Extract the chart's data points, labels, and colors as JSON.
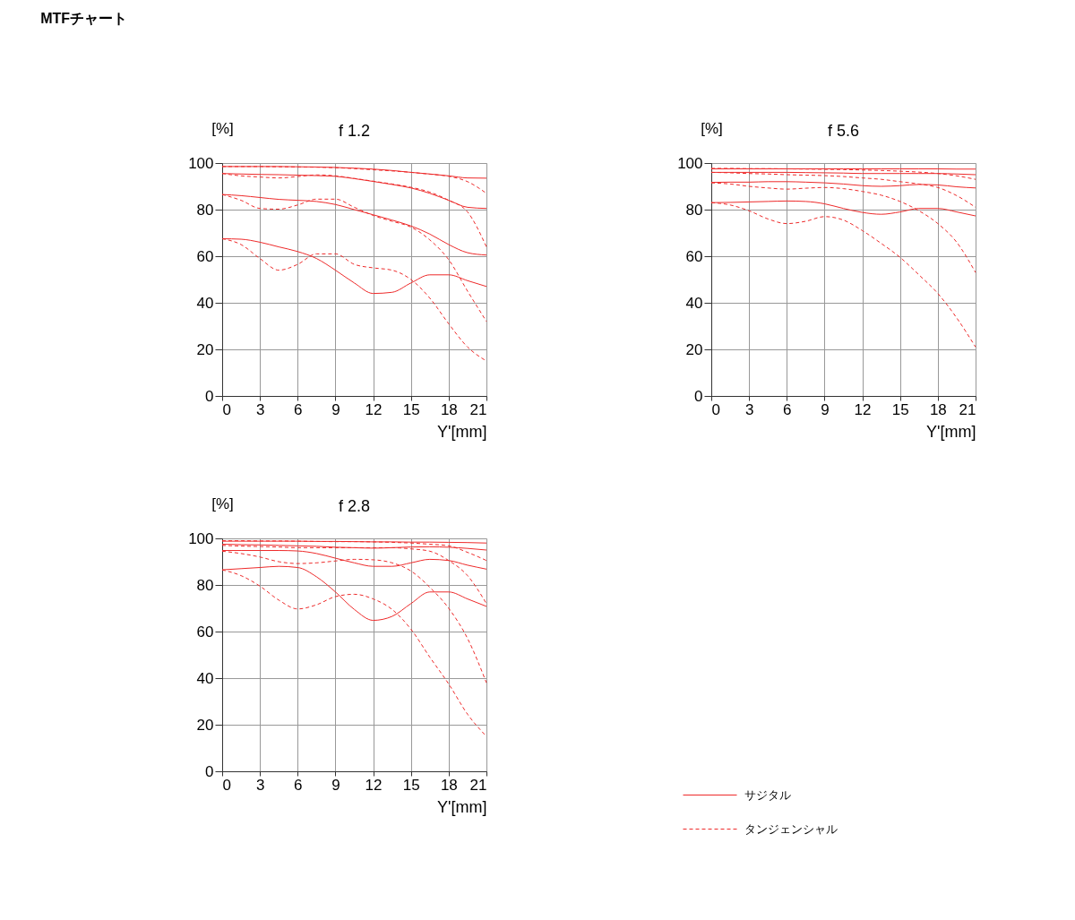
{
  "chart_data": [
    {
      "type": "line",
      "title": "f 1.2",
      "ylabel": "[%]",
      "xlabel": "Y'[mm]",
      "annotations": [
        "MTFチャート"
      ],
      "x": [
        0,
        1.5,
        3,
        4.5,
        6,
        7.5,
        9,
        10.5,
        12,
        13.5,
        15,
        16.5,
        18,
        19.5,
        21
      ],
      "xlim": [
        0,
        21
      ],
      "xticks": [
        0,
        3,
        6,
        9,
        12,
        15,
        18,
        21
      ],
      "ylim": [
        0,
        100
      ],
      "yticks": [
        0,
        20,
        40,
        60,
        80,
        100
      ],
      "grid": true,
      "legend": false,
      "series": [
        {
          "color": "#ee2a2a",
          "line_style": "solid",
          "values": [
            98.5,
            98.5,
            98.5,
            98.5,
            98.4,
            98.3,
            98.1,
            97.8,
            97.4,
            96.8,
            96,
            95.3,
            94.5,
            93.6,
            93.5
          ]
        },
        {
          "color": "#ee2a2a",
          "line_style": "dashed",
          "values": [
            98.5,
            98.5,
            98.5,
            98.4,
            98.3,
            98.2,
            98,
            97.6,
            97.1,
            96.6,
            96,
            95.2,
            94.3,
            92,
            87
          ]
        },
        {
          "color": "#ee2a2a",
          "line_style": "solid",
          "values": [
            95.5,
            95.3,
            95.1,
            95,
            94.8,
            94.6,
            94.3,
            93.3,
            92.1,
            90.8,
            89.3,
            87,
            84,
            81,
            80.5
          ]
        },
        {
          "color": "#ee2a2a",
          "line_style": "dashed",
          "values": [
            95.5,
            94.5,
            94,
            93.6,
            94.2,
            94.9,
            94.5,
            93.4,
            92.2,
            91,
            89.6,
            87.5,
            84,
            79,
            64
          ]
        },
        {
          "color": "#ee2a2a",
          "line_style": "solid",
          "values": [
            86.5,
            86,
            85.2,
            84.4,
            84,
            83.5,
            82.2,
            80,
            77.8,
            75.5,
            73,
            69.5,
            65,
            61.5,
            60.5
          ]
        },
        {
          "color": "#ee2a2a",
          "line_style": "dashed",
          "values": [
            86.5,
            84,
            80.5,
            80.2,
            82,
            84.5,
            84.5,
            81,
            77.5,
            75,
            72.5,
            67,
            58.5,
            45,
            32
          ]
        },
        {
          "color": "#ee2a2a",
          "line_style": "solid",
          "values": [
            67.5,
            67.3,
            66,
            64,
            62,
            59,
            54,
            48.5,
            44,
            44.5,
            48.5,
            52,
            52,
            49.5,
            47
          ]
        },
        {
          "color": "#ee2a2a",
          "line_style": "dashed",
          "values": [
            67.5,
            65,
            59,
            54,
            56.5,
            61,
            61,
            56.5,
            55,
            54,
            50,
            42,
            31,
            21,
            15
          ]
        }
      ]
    },
    {
      "type": "line",
      "title": "f 5.6",
      "ylabel": "[%]",
      "xlabel": "Y'[mm]",
      "x": [
        0,
        1.5,
        3,
        4.5,
        6,
        7.5,
        9,
        10.5,
        12,
        13.5,
        15,
        16.5,
        18,
        19.5,
        21
      ],
      "xlim": [
        0,
        21
      ],
      "xticks": [
        0,
        3,
        6,
        9,
        12,
        15,
        18,
        21
      ],
      "ylim": [
        0,
        100
      ],
      "yticks": [
        0,
        20,
        40,
        60,
        80,
        100
      ],
      "grid": true,
      "legend": false,
      "series": [
        {
          "color": "#ee2a2a",
          "line_style": "solid",
          "values": [
            97.5,
            97.5,
            97.5,
            97.5,
            97.5,
            97.5,
            97.5,
            97.5,
            97.5,
            97.5,
            97.5,
            97.5,
            97.5,
            97.4,
            97.4
          ]
        },
        {
          "color": "#ee2a2a",
          "line_style": "dashed",
          "values": [
            97.7,
            97.7,
            97.6,
            97.6,
            97.5,
            97.4,
            97.3,
            97.2,
            97,
            96.8,
            96.5,
            96.1,
            95.5,
            94.5,
            93
          ]
        },
        {
          "color": "#ee2a2a",
          "line_style": "solid",
          "values": [
            96,
            96,
            96,
            96,
            96,
            95.9,
            95.8,
            95.7,
            95.5,
            95.5,
            95.5,
            95.5,
            95.5,
            95.3,
            95
          ]
        },
        {
          "color": "#ee2a2a",
          "line_style": "dashed",
          "values": [
            96,
            95.8,
            95.5,
            95.3,
            95,
            94.8,
            94.6,
            94.2,
            93.6,
            93,
            92,
            91,
            89.5,
            86,
            81
          ]
        },
        {
          "color": "#ee2a2a",
          "line_style": "solid",
          "values": [
            91.7,
            91.8,
            91.8,
            92,
            92,
            91.8,
            91.5,
            91,
            90.3,
            90,
            90.3,
            90.8,
            90.6,
            89.8,
            89.3
          ]
        },
        {
          "color": "#ee2a2a",
          "line_style": "dashed",
          "values": [
            91.5,
            91,
            90,
            89.3,
            88.8,
            89.2,
            89.5,
            89,
            87.8,
            86.2,
            83.5,
            79.5,
            74,
            66,
            53
          ]
        },
        {
          "color": "#ee2a2a",
          "line_style": "solid",
          "values": [
            83,
            83.1,
            83.3,
            83.5,
            83.7,
            83.5,
            82.5,
            80.5,
            78.8,
            78,
            79,
            80.5,
            80.5,
            79,
            77.3
          ]
        },
        {
          "color": "#ee2a2a",
          "line_style": "dashed",
          "values": [
            83,
            82,
            79.5,
            76,
            74,
            75,
            77,
            75.5,
            71,
            65.5,
            59.5,
            52,
            44,
            33.5,
            21
          ]
        }
      ]
    },
    {
      "type": "line",
      "title": "f 2.8",
      "ylabel": "[%]",
      "xlabel": "Y'[mm]",
      "x": [
        0,
        1.5,
        3,
        4.5,
        6,
        7.5,
        9,
        10.5,
        12,
        13.5,
        15,
        16.5,
        18,
        19.5,
        21
      ],
      "xlim": [
        0,
        21
      ],
      "xticks": [
        0,
        3,
        6,
        9,
        12,
        15,
        18,
        21
      ],
      "ylim": [
        0,
        100
      ],
      "yticks": [
        0,
        20,
        40,
        60,
        80,
        100
      ],
      "grid": true,
      "legend": "right",
      "series": [
        {
          "name": "サジタル",
          "color": "#ee2a2a",
          "line_style": "solid",
          "values": [
            98.8,
            98.8,
            98.8,
            98.8,
            98.8,
            98.7,
            98.7,
            98.6,
            98.5,
            98.5,
            98.4,
            98.4,
            98.3,
            98.2,
            98
          ]
        },
        {
          "name": "タンジェンシャル",
          "color": "#ee2a2a",
          "line_style": "dashed",
          "values": [
            99,
            99,
            98.9,
            98.9,
            98.8,
            98.7,
            98.6,
            98.6,
            98.5,
            98.3,
            98,
            97.5,
            96.8,
            94,
            90.5
          ]
        },
        {
          "color": "#ee2a2a",
          "line_style": "solid",
          "values": [
            97.5,
            97.3,
            97.2,
            97,
            96.8,
            96.6,
            96.2,
            96,
            95.8,
            96,
            96.3,
            96.4,
            96.2,
            95.7,
            95
          ]
        },
        {
          "color": "#ee2a2a",
          "line_style": "dashed",
          "values": [
            97,
            96.7,
            96.5,
            96.3,
            96,
            96,
            96,
            96,
            96,
            96,
            95.5,
            94.5,
            90.5,
            84,
            72
          ]
        },
        {
          "color": "#ee2a2a",
          "line_style": "solid",
          "values": [
            94.8,
            94.8,
            94.8,
            94.8,
            94.6,
            93.5,
            91.5,
            89.5,
            88,
            88,
            89.5,
            91,
            90.5,
            88.5,
            86.8
          ]
        },
        {
          "color": "#ee2a2a",
          "line_style": "dashed",
          "values": [
            94.5,
            93.5,
            92,
            90,
            89.2,
            89.5,
            90.3,
            91,
            90.8,
            89.5,
            86,
            79,
            70,
            57,
            38
          ]
        },
        {
          "color": "#ee2a2a",
          "line_style": "solid",
          "values": [
            86.5,
            87,
            87.5,
            88,
            87.5,
            83.5,
            77,
            69.5,
            64.8,
            66.5,
            72,
            77,
            77,
            74,
            70.8
          ]
        },
        {
          "color": "#ee2a2a",
          "line_style": "dashed",
          "values": [
            86.5,
            84,
            79.5,
            73.5,
            69.7,
            71.5,
            75,
            76,
            74,
            69.5,
            61,
            49,
            37.5,
            24.5,
            15
          ]
        }
      ]
    }
  ]
}
